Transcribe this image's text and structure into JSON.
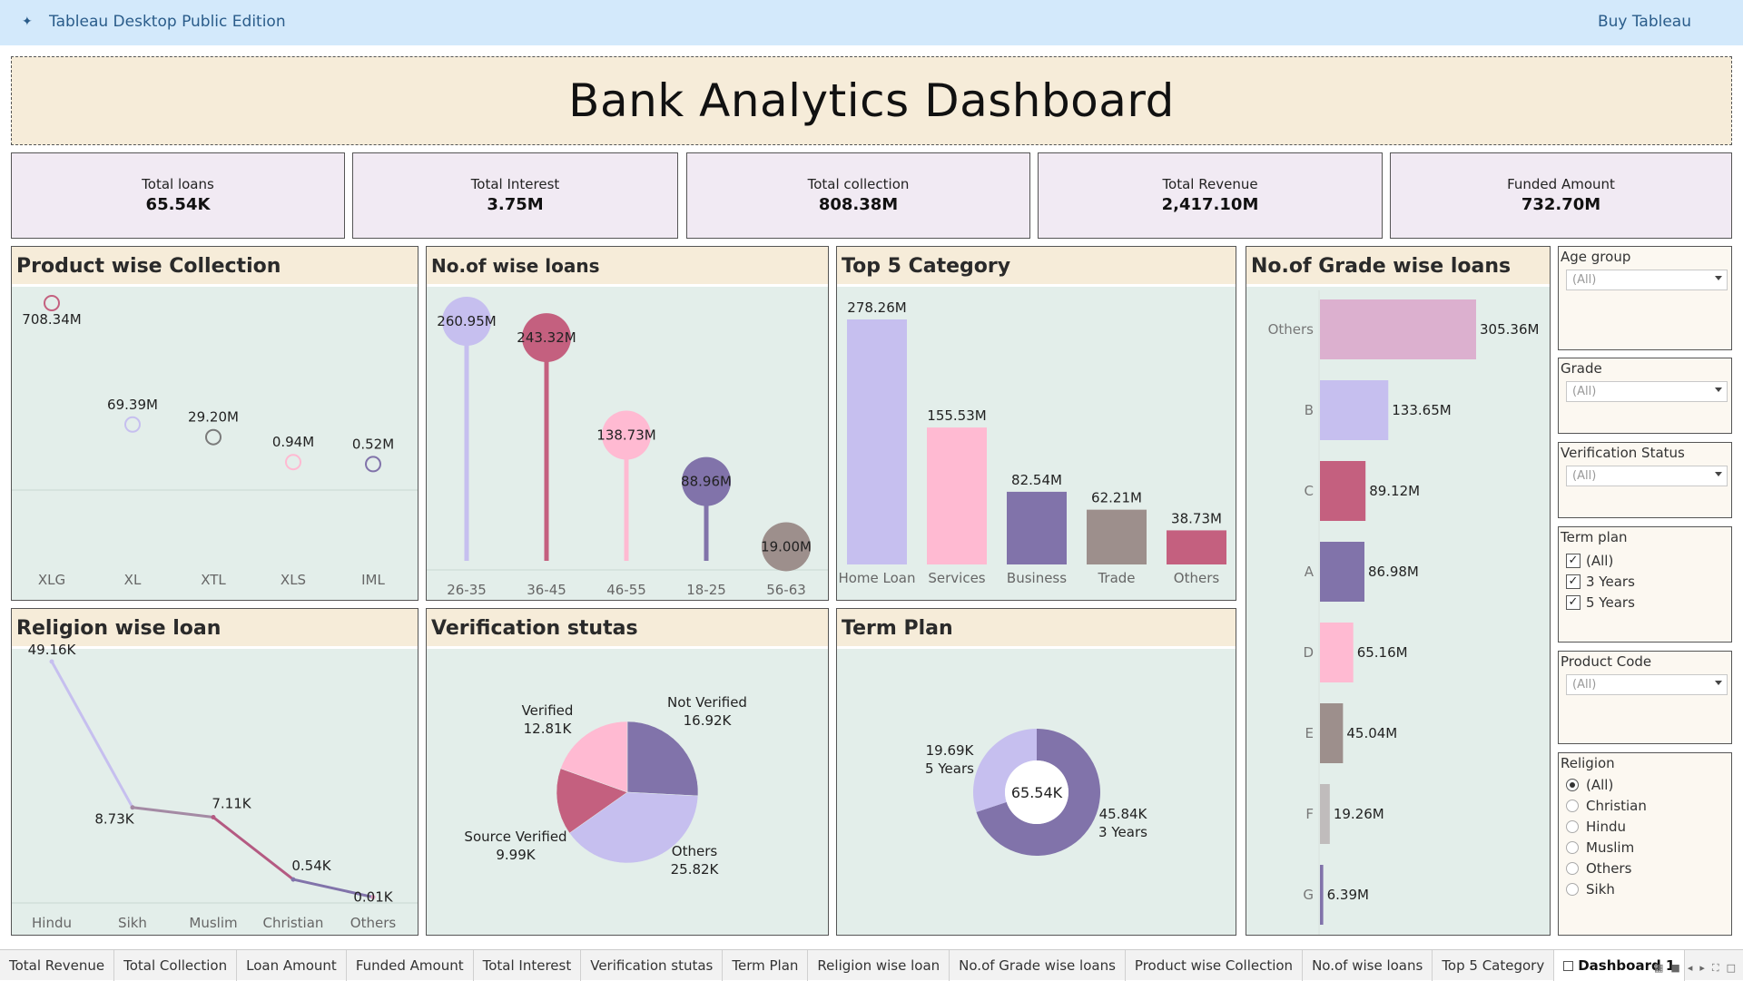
{
  "app": {
    "title": "Tableau Desktop Public Edition",
    "buy_label": "Buy Tableau"
  },
  "dashboard": {
    "title": "Bank Analytics Dashboard"
  },
  "kpis": [
    {
      "label": "Total loans",
      "value": "65.54K"
    },
    {
      "label": "Total Interest",
      "value": "3.75M"
    },
    {
      "label": "Total collection",
      "value": "808.38M"
    },
    {
      "label": "Total Revenue",
      "value": "2,417.10M"
    },
    {
      "label": "Funded Amount",
      "value": "732.70M"
    }
  ],
  "panels": {
    "product": "Product wise Collection",
    "age": "No.of wise loans",
    "category": "Top 5 Category",
    "grade": "No.of  Grade wise loans",
    "religion": "Religion wise loan",
    "verification": "Verification stutas",
    "term": "Term Plan"
  },
  "colors": {
    "panel_bg": "#e3eeea",
    "header_bg": "#f6ecd9",
    "lavender": "#c6bfef",
    "rose": "#c4607f",
    "pink": "#ffbad2",
    "purple": "#8173aa",
    "taupe": "#9d8f8c",
    "mauve": "#dcb0cf",
    "gray": "#c0bcbc"
  },
  "chart_data": [
    {
      "id": "product",
      "type": "scatter",
      "title": "Product wise Collection",
      "categories": [
        "XLG",
        "XL",
        "XTL",
        "XLS",
        "IML"
      ],
      "values": [
        708.34,
        69.39,
        29.2,
        0.94,
        0.52
      ],
      "labels": [
        "708.34M",
        "69.39M",
        "29.20M",
        "0.94M",
        "0.52M"
      ],
      "unit": "M",
      "colors": [
        "#c4607f",
        "#c6bfef",
        "#7a7a7a",
        "#ffbad2",
        "#8173aa"
      ]
    },
    {
      "id": "age",
      "type": "lollipop",
      "title": "No.of wise loans",
      "categories": [
        "26-35",
        "36-45",
        "46-55",
        "18-25",
        "56-63"
      ],
      "values": [
        260.95,
        243.32,
        138.73,
        88.96,
        19.0
      ],
      "labels": [
        "260.95M",
        "243.32M",
        "138.73M",
        "88.96M",
        "19.00M"
      ],
      "colors": [
        "#c6bfef",
        "#c4607f",
        "#ffbad2",
        "#8173aa",
        "#9d8f8c"
      ]
    },
    {
      "id": "category",
      "type": "bar",
      "title": "Top 5 Category",
      "categories": [
        "Home Loan",
        "Services",
        "Business",
        "Trade",
        "Others"
      ],
      "values": [
        278.26,
        155.53,
        82.54,
        62.21,
        38.73
      ],
      "labels": [
        "278.26M",
        "155.53M",
        "82.54M",
        "62.21M",
        "38.73M"
      ],
      "colors": [
        "#c6bfef",
        "#ffbad2",
        "#8173aa",
        "#9d8f8c",
        "#c4607f"
      ]
    },
    {
      "id": "grade",
      "type": "bar",
      "orientation": "horizontal",
      "title": "No.of  Grade wise loans",
      "categories": [
        "Others",
        "B",
        "C",
        "A",
        "D",
        "E",
        "F",
        "G"
      ],
      "values": [
        305.36,
        133.65,
        89.12,
        86.98,
        65.16,
        45.04,
        19.26,
        6.39
      ],
      "labels": [
        "305.36M",
        "133.65M",
        "89.12M",
        "86.98M",
        "65.16M",
        "45.04M",
        "19.26M",
        "6.39M"
      ],
      "colors": [
        "#dcb0cf",
        "#c6bfef",
        "#c4607f",
        "#8173aa",
        "#ffbad2",
        "#9d8f8c",
        "#c0bcbc",
        "#8173aa"
      ]
    },
    {
      "id": "religion",
      "type": "line",
      "title": "Religion wise loan",
      "categories": [
        "Hindu",
        "Sikh",
        "Muslim",
        "Christian",
        "Others"
      ],
      "values": [
        49.16,
        8.73,
        7.11,
        0.54,
        0.01
      ],
      "labels": [
        "49.16K",
        "8.73K",
        "7.11K",
        "0.54K",
        "0.01K"
      ],
      "unit": "K"
    },
    {
      "id": "verification",
      "type": "pie",
      "title": "Verification stutas",
      "slices": [
        {
          "name": "Not Verified",
          "value": 16.92,
          "label": "16.92K",
          "color": "#8173aa"
        },
        {
          "name": "Others",
          "value": 25.82,
          "label": "25.82K",
          "color": "#c6bfef"
        },
        {
          "name": "Source Verified",
          "value": 9.99,
          "label": "9.99K",
          "color": "#c4607f"
        },
        {
          "name": "Verified",
          "value": 12.81,
          "label": "12.81K",
          "color": "#ffbad2"
        }
      ]
    },
    {
      "id": "term",
      "type": "pie",
      "donut": true,
      "title": "Term Plan",
      "center_label": "65.54K",
      "slices": [
        {
          "name": "3 Years",
          "value": 45.84,
          "label": "45.84K",
          "color": "#8173aa"
        },
        {
          "name": "5 Years",
          "value": 19.69,
          "label": "19.69K",
          "color": "#c6bfef"
        }
      ]
    }
  ],
  "filters": {
    "age_group": {
      "title": "Age  group",
      "value": "(All)"
    },
    "grade": {
      "title": "Grade",
      "value": "(All)"
    },
    "verification": {
      "title": "Verification Status",
      "value": "(All)"
    },
    "term_plan": {
      "title": "Term plan",
      "options": [
        "(All)",
        "3 Years",
        "5 Years"
      ],
      "check_mark": "✓"
    },
    "product_code": {
      "title": "Product Code",
      "value": "(All)"
    },
    "religion": {
      "title": "Religion",
      "options": [
        "(All)",
        "Christian",
        "Hindu",
        "Muslim",
        "Others",
        "Sikh"
      ],
      "selected": "(All)"
    }
  },
  "tabs": [
    "Total Revenue",
    "Total Collection",
    "Loan Amount",
    "Funded Amount",
    "Total Interest",
    "Verification stutas",
    "Term Plan",
    "Religion wise loan",
    "No.of  Grade wise loans",
    "Product wise Collection",
    "No.of wise loans",
    "Top 5 Category",
    "Dashboard 1"
  ],
  "active_tab": "Dashboard 1"
}
